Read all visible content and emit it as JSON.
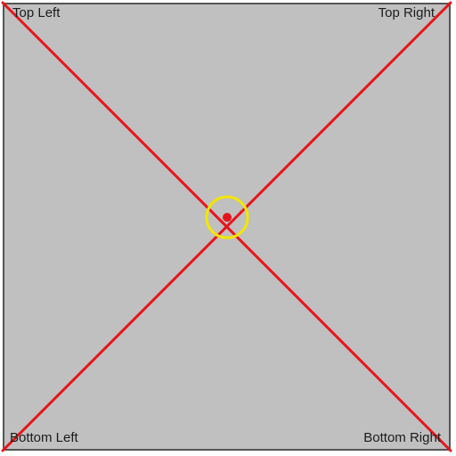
{
  "labels": {
    "top_left": "Top Left",
    "top_right": "Top Right",
    "bottom_left": "Bottom Left",
    "bottom_right": "Bottom Right"
  },
  "colors": {
    "panel_fill": "#c0c0c0",
    "panel_border": "#555555",
    "diagonal_line": "#e8141b",
    "center_dot": "#e8141b",
    "center_ring": "#f2e600",
    "label_text": "#1c1c1c"
  }
}
